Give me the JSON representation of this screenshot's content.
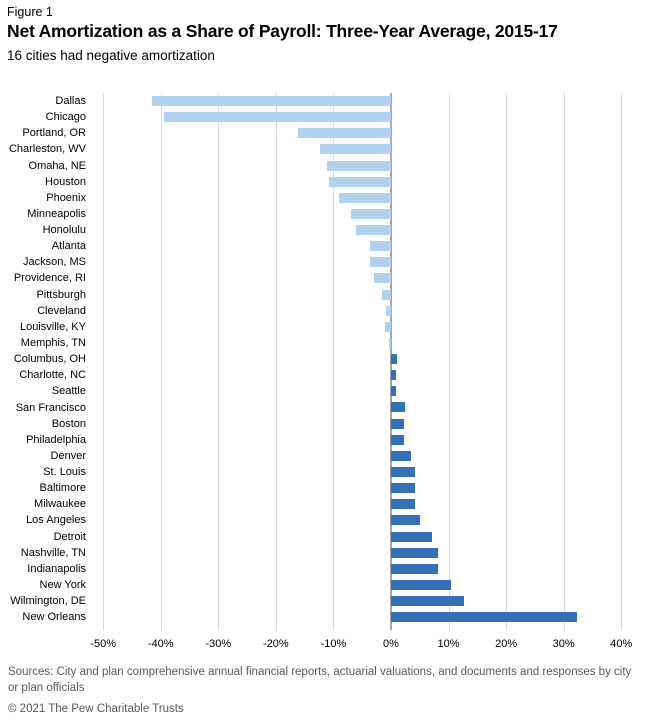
{
  "figure_label": "Figure 1",
  "title": "Net Amortization as a Share of Payroll: Three-Year Average, 2015-17",
  "subtitle": "16 cities had negative amortization",
  "chart_data": {
    "type": "bar",
    "orientation": "horizontal",
    "unit": "% of payroll",
    "title": "Net Amortization as a Share of Payroll: Three-Year Average, 2015-17",
    "xlabel": "",
    "ylabel": "",
    "xlim": [
      -50,
      40
    ],
    "grid": true,
    "legend": false,
    "categories": [
      "Dallas",
      "Chicago",
      "Portland, OR",
      "Charleston, WV",
      "Omaha, NE",
      "Houston",
      "Phoenix",
      "Minneapolis",
      "Honolulu",
      "Atlanta",
      "Jackson, MS",
      "Providence, RI",
      "Pittsburgh",
      "Cleveland",
      "Louisville, KY",
      "Memphis, TN",
      "Columbus, OH",
      "Charlotte, NC",
      "Seattle",
      "San Francisco",
      "Boston",
      "Philadelphia",
      "Denver",
      "St. Louis",
      "Baltimore",
      "Milwaukee",
      "Los Angeles",
      "Detroit",
      "Nashville, TN",
      "Indianapolis",
      "New York",
      "Wilmington, DE",
      "New Orleans"
    ],
    "values": [
      -41.6,
      -39.4,
      -16.1,
      -12.3,
      -11.2,
      -10.7,
      -9.0,
      -7.0,
      -6.0,
      -3.7,
      -3.6,
      -3.0,
      -1.5,
      -0.9,
      -1.1,
      -0.4,
      1.0,
      0.9,
      0.8,
      2.4,
      2.2,
      2.3,
      3.5,
      4.2,
      4.1,
      4.2,
      5.1,
      7.2,
      8.2,
      8.2,
      10.5,
      12.7,
      32.4
    ],
    "xticks": [
      {
        "value": -50,
        "label": "-50%"
      },
      {
        "value": -40,
        "label": "-40%"
      },
      {
        "value": -30,
        "label": "-30%"
      },
      {
        "value": -20,
        "label": "-20%"
      },
      {
        "value": -10,
        "label": "-10%"
      },
      {
        "value": 0,
        "label": "0%"
      },
      {
        "value": 10,
        "label": "10%"
      },
      {
        "value": 20,
        "label": "20%"
      },
      {
        "value": 30,
        "label": "30%"
      },
      {
        "value": 40,
        "label": "40%"
      }
    ],
    "colors": {
      "negative_bar": "#b1d1ee",
      "positive_bar": "#3470b5",
      "gridline": "#d9d9d9",
      "zero_line": "#a6a6a6",
      "text": "#000000",
      "footer_text": "#595959"
    }
  },
  "footer": {
    "sources": "Sources: City and plan comprehensive annual financial reports, actuarial valuations, and documents and responses by city or plan officials",
    "copyright": "© 2021 The Pew Charitable Trusts"
  }
}
